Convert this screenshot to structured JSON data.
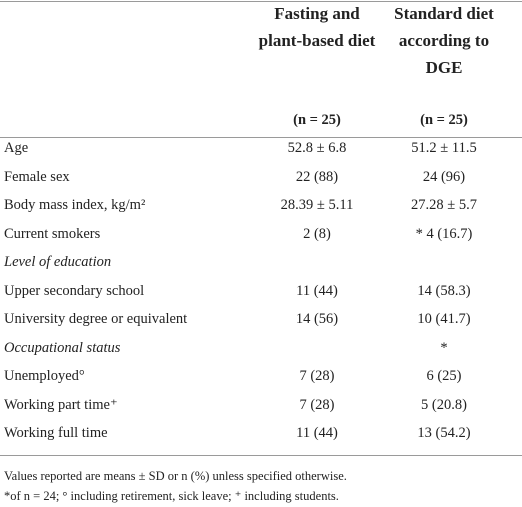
{
  "header": {
    "columns": [
      "Fasting and plant-based diet",
      "Standard diet according to DGE"
    ],
    "n": [
      "(n = 25)",
      "(n = 25)"
    ]
  },
  "table": {
    "rows": [
      {
        "label": "Age",
        "fasting": "52.8 ± 6.8",
        "standard": "51.2 ± 11.5"
      },
      {
        "label": "Female sex",
        "fasting": "22 (88)",
        "standard": "24 (96)"
      },
      {
        "label": "Body mass index, kg/m²",
        "fasting": "28.39 ± 5.11",
        "standard": "27.28 ± 5.7"
      },
      {
        "label": "Current smokers",
        "fasting": "2 (8)",
        "standard": "* 4 (16.7)"
      },
      {
        "label": "Level of education",
        "style": "italic"
      },
      {
        "label": "Upper secondary school",
        "fasting": "11 (44)",
        "standard": "14 (58.3)"
      },
      {
        "label": "University degree or equivalent",
        "fasting": "14 (56)",
        "standard": "10 (41.7)"
      },
      {
        "label": "Occupational status",
        "style": "italic",
        "standard": "*"
      },
      {
        "label": "Unemployed°",
        "fasting": "7 (28)",
        "standard": "6 (25)"
      },
      {
        "label": "Working part time⁺",
        "fasting": "7 (28)",
        "standard": "5 (20.8)"
      },
      {
        "label": "Working full time",
        "fasting": "11 (44)",
        "standard": "13 (54.2)"
      }
    ]
  },
  "footnotes": [
    "Values reported are means ± SD or n (%) unless specified otherwise.",
    "*of n = 24; ° including retirement, sick leave; ⁺ including students."
  ]
}
